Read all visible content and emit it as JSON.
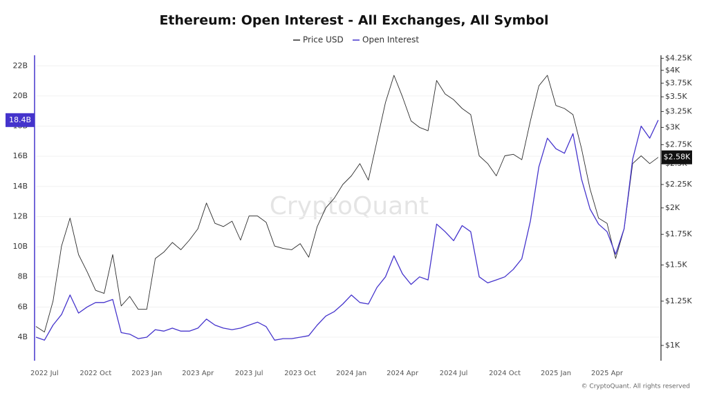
{
  "chart_data": {
    "type": "line",
    "title": "Ethereum: Open Interest - All Exchanges, All Symbol",
    "categories": [
      null,
      "2022 Jul",
      null,
      null,
      null,
      null,
      null,
      "2022 Oct",
      null,
      null,
      null,
      null,
      null,
      "2023 Jan",
      null,
      null,
      null,
      null,
      null,
      "2023 Apr",
      null,
      null,
      null,
      null,
      null,
      "2023 Jul",
      null,
      null,
      null,
      null,
      null,
      "2023 Oct",
      null,
      null,
      null,
      null,
      null,
      "2024 Jan",
      null,
      null,
      null,
      null,
      null,
      "2024 Apr",
      null,
      null,
      null,
      null,
      null,
      "2024 Jul",
      null,
      null,
      null,
      null,
      null,
      "2024 Oct",
      null,
      null,
      null,
      null,
      null,
      "2025 Jan",
      null,
      null,
      null,
      null,
      null,
      "2025 Apr",
      null,
      null,
      null,
      null,
      null,
      null
    ],
    "series": [
      {
        "name": "Price USD",
        "color": "#2b2b2b",
        "axis": "y2",
        "end_label": "$2.58K",
        "values": [
          1100,
          1070,
          1250,
          1650,
          1900,
          1580,
          1450,
          1320,
          1300,
          1580,
          1220,
          1280,
          1200,
          1200,
          1550,
          1600,
          1680,
          1620,
          1700,
          1800,
          2050,
          1850,
          1820,
          1870,
          1700,
          1920,
          1920,
          1860,
          1650,
          1630,
          1620,
          1670,
          1560,
          1820,
          2000,
          2100,
          2250,
          2350,
          2500,
          2300,
          2800,
          3400,
          3900,
          3500,
          3100,
          3000,
          2950,
          3800,
          3550,
          3450,
          3300,
          3200,
          2600,
          2500,
          2350,
          2600,
          2620,
          2550,
          3100,
          3700,
          3900,
          3350,
          3300,
          3200,
          2700,
          2200,
          1900,
          1850,
          1550,
          1800,
          2500,
          2600,
          2500,
          2580
        ]
      },
      {
        "name": "Open Interest",
        "color": "#4433cc",
        "axis": "y",
        "end_label": "18.4B",
        "values": [
          4000000000.0,
          3800000000.0,
          4800000000.0,
          5500000000.0,
          6800000000.0,
          5600000000.0,
          6000000000.0,
          6300000000.0,
          6300000000.0,
          6500000000.0,
          4300000000.0,
          4200000000.0,
          3900000000.0,
          4000000000.0,
          4500000000.0,
          4400000000.0,
          4600000000.0,
          4400000000.0,
          4400000000.0,
          4600000000.0,
          5200000000.0,
          4800000000.0,
          4600000000.0,
          4500000000.0,
          4600000000.0,
          4800000000.0,
          5000000000.0,
          4700000000.0,
          3800000000.0,
          3900000000.0,
          3900000000.0,
          4000000000.0,
          4100000000.0,
          4800000000.0,
          5400000000.0,
          5700000000.0,
          6200000000.0,
          6800000000.0,
          6300000000.0,
          6200000000.0,
          7300000000.0,
          8000000000.0,
          9400000000.0,
          8200000000.0,
          7500000000.0,
          8000000000.0,
          7800000000.0,
          11500000000.0,
          11000000000.0,
          10400000000.0,
          11400000000.0,
          11000000000.0,
          8000000000.0,
          7600000000.0,
          7800000000.0,
          8000000000.0,
          8500000000.0,
          9200000000.0,
          11700000000.0,
          15300000000.0,
          17200000000.0,
          16500000000.0,
          16200000000.0,
          17500000000.0,
          14500000000.0,
          12500000000.0,
          11500000000.0,
          11000000000.0,
          9500000000.0,
          11200000000.0,
          15800000000.0,
          18000000000.0,
          17200000000.0,
          18400000000.0
        ]
      }
    ],
    "ylim": [
      2440000000.0,
      22700000000.0
    ],
    "yticks": [
      {
        "value": 4000000000.0,
        "label": "4B"
      },
      {
        "value": 6000000000.0,
        "label": "6B"
      },
      {
        "value": 8000000000.0,
        "label": "8B"
      },
      {
        "value": 10000000000.0,
        "label": "10B"
      },
      {
        "value": 12000000000.0,
        "label": "12B"
      },
      {
        "value": 14000000000.0,
        "label": "14B"
      },
      {
        "value": 16000000000.0,
        "label": "16B"
      },
      {
        "value": 18000000000.0,
        "label": "18B"
      },
      {
        "value": 20000000000.0,
        "label": "20B"
      },
      {
        "value": 22000000000.0,
        "label": "22B"
      }
    ],
    "y2lim": [
      926,
      4315
    ],
    "y2log": true,
    "y2ticks": [
      {
        "value": 1000,
        "label": "$1K"
      },
      {
        "value": 1250,
        "label": "$1.25K"
      },
      {
        "value": 1500,
        "label": "$1.5K"
      },
      {
        "value": 1750,
        "label": "$1.75K"
      },
      {
        "value": 2000,
        "label": "$2K"
      },
      {
        "value": 2250,
        "label": "$2.25K"
      },
      {
        "value": 2500,
        "label": "$2.5K"
      },
      {
        "value": 2750,
        "label": "$2.75K"
      },
      {
        "value": 3000,
        "label": "$3K"
      },
      {
        "value": 3250,
        "label": "$3.25K"
      },
      {
        "value": 3500,
        "label": "$3.5K"
      },
      {
        "value": 3750,
        "label": "$3.75K"
      },
      {
        "value": 4000,
        "label": "$4K"
      },
      {
        "value": 4250,
        "label": "$4.25K"
      }
    ],
    "grid": true,
    "watermark": "CryptoQuant",
    "footer": "© CryptoQuant. All rights reserved"
  }
}
